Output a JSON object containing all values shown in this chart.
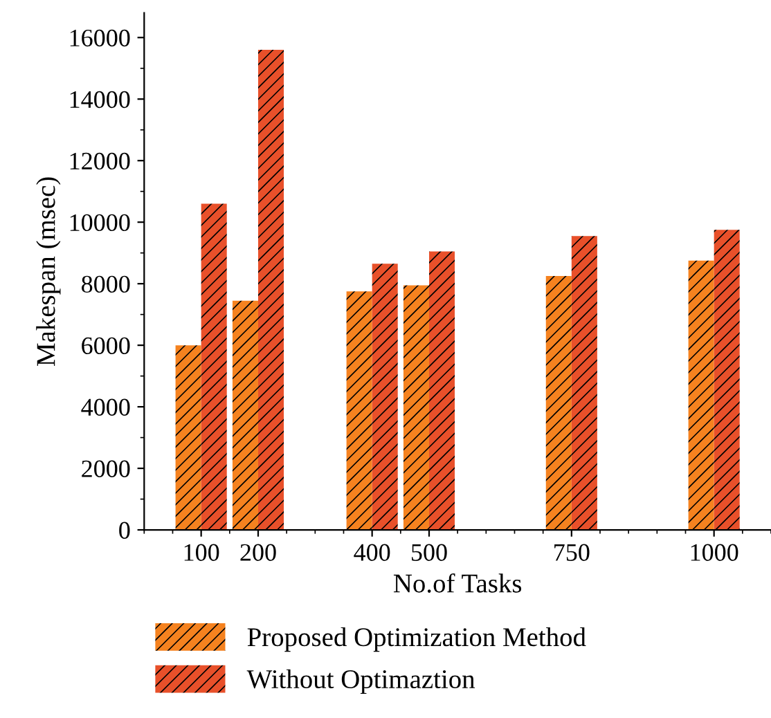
{
  "chart_data": {
    "type": "bar",
    "xlabel": "No.of Tasks",
    "ylabel": "Makespan (msec)",
    "x": [
      100,
      200,
      400,
      500,
      750,
      1000
    ],
    "series": [
      {
        "name": "Proposed Optimization Method",
        "color": "#f5821f",
        "values": [
          6000,
          7450,
          7750,
          7950,
          8250,
          8750
        ]
      },
      {
        "name": "Without Optimaztion",
        "color": "#e8502a",
        "values": [
          10600,
          15600,
          8650,
          9050,
          9550,
          9750
        ]
      }
    ],
    "xlim": [
      0,
      1100
    ],
    "xticks": [
      100,
      200,
      400,
      500,
      750,
      1000
    ],
    "ylim": [
      0,
      16800
    ],
    "yticks": [
      0,
      2000,
      4000,
      6000,
      8000,
      10000,
      12000,
      14000,
      16000
    ],
    "grid": false,
    "legend": "bottom"
  }
}
